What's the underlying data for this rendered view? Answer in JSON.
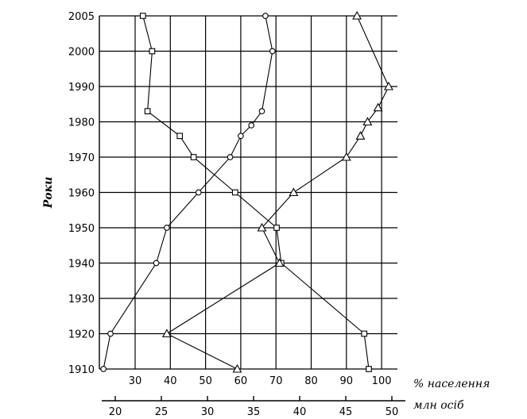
{
  "chart_data": {
    "type": "line",
    "title": "",
    "ylabel": "Роки",
    "xlabel_top": "% населення",
    "xlabel_bottom": "млн осіб",
    "grid": true,
    "y_ticks": [
      "1910",
      "1920",
      "1930",
      "1940",
      "1950",
      "1960",
      "1970",
      "1980",
      "1990",
      "2000",
      "2005"
    ],
    "x_ticks_top": [
      "30",
      "40",
      "50",
      "60",
      "70",
      "80",
      "90",
      "100"
    ],
    "x_ticks_bottom": [
      "20",
      "25",
      "30",
      "35",
      "40",
      "45",
      "50"
    ],
    "series": [
      {
        "marker": "circle",
        "axis": "top",
        "values": [
          {
            "x": 21,
            "y": "1910"
          },
          {
            "x": 23,
            "y": "1920"
          },
          {
            "x": 36,
            "y": "1940"
          },
          {
            "x": 39,
            "y": "1950"
          },
          {
            "x": 48,
            "y": "1960"
          },
          {
            "x": 57,
            "y": "1970"
          },
          {
            "x": 60,
            "y": "1976"
          },
          {
            "x": 63,
            "y": "1979"
          },
          {
            "x": 66,
            "y": "1983"
          },
          {
            "x": 69,
            "y": "2000"
          },
          {
            "x": 67,
            "y": "2005"
          }
        ]
      },
      {
        "marker": "square",
        "axis": "bottom",
        "values": [
          {
            "x": 47.5,
            "y": "1910"
          },
          {
            "x": 47,
            "y": "1920"
          },
          {
            "x": 38,
            "y": "1940"
          },
          {
            "x": 37.5,
            "y": "1950"
          },
          {
            "x": 33,
            "y": "1960"
          },
          {
            "x": 28.5,
            "y": "1970"
          },
          {
            "x": 27,
            "y": "1976"
          },
          {
            "x": 23.5,
            "y": "1983"
          },
          {
            "x": 24,
            "y": "2000"
          },
          {
            "x": 23,
            "y": "2005"
          }
        ]
      },
      {
        "marker": "triangle",
        "axis": "top",
        "values": [
          {
            "x": 59,
            "y": "1910"
          },
          {
            "x": 39,
            "y": "1920"
          },
          {
            "x": 71,
            "y": "1940"
          },
          {
            "x": 66,
            "y": "1950"
          },
          {
            "x": 75,
            "y": "1960"
          },
          {
            "x": 90,
            "y": "1970"
          },
          {
            "x": 94,
            "y": "1976"
          },
          {
            "x": 96,
            "y": "1980"
          },
          {
            "x": 99,
            "y": "1984"
          },
          {
            "x": 102,
            "y": "1990"
          },
          {
            "x": 93,
            "y": "2005"
          }
        ]
      }
    ]
  }
}
